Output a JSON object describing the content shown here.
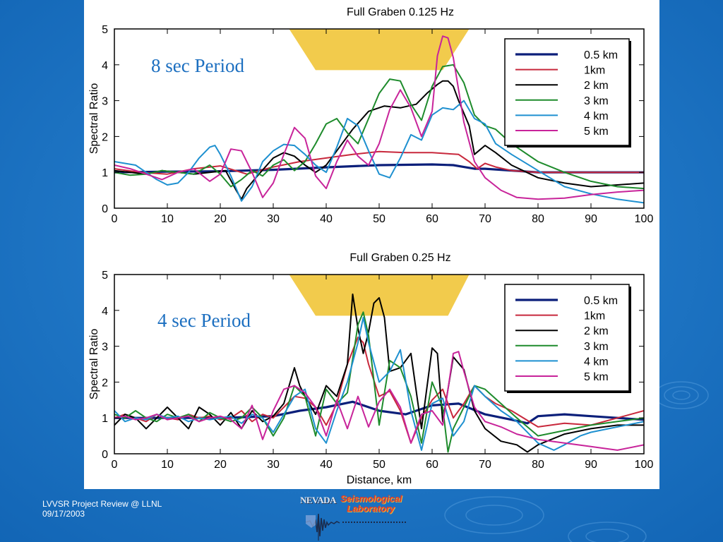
{
  "footer": {
    "line1": "LVVSR Project Review @ LLNL",
    "line2": "09/17/2003"
  },
  "logo": {
    "nevada": "NEVADA",
    "line1": "Seismological",
    "line2": "Laboratory"
  },
  "colors": {
    "background": "#1a73c4",
    "graben": "#f2cb4c",
    "annotation": "#1c6fc0"
  },
  "chart_data": [
    {
      "type": "line",
      "title": "Full Graben 0.125 Hz",
      "xlabel": "",
      "ylabel": "Spectral Ratio",
      "xlim": [
        0,
        100
      ],
      "ylim": [
        0,
        5
      ],
      "xticks": [
        0,
        10,
        20,
        30,
        40,
        50,
        60,
        70,
        80,
        90,
        100
      ],
      "yticks": [
        0,
        1,
        2,
        3,
        4,
        5
      ],
      "annotation": "8 sec Period",
      "legend_position": "top-right",
      "graben": {
        "top": [
          33,
          67
        ],
        "bottom": [
          38,
          62
        ],
        "y_bottom": 3.85,
        "y_top": 5
      },
      "series": [
        {
          "name": "0.5 km",
          "color": "#0b1f7a",
          "width": 3.2,
          "x": [
            0,
            10,
            20,
            30,
            40,
            50,
            60,
            64,
            66,
            68,
            70,
            75,
            80,
            90,
            100
          ],
          "y": [
            1.0,
            1.02,
            1.03,
            1.07,
            1.14,
            1.2,
            1.22,
            1.2,
            1.15,
            1.1,
            1.1,
            1.05,
            1.0,
            1.0,
            1.0
          ]
        },
        {
          "name": "1km",
          "color": "#c8283c",
          "width": 2,
          "x": [
            0,
            5,
            10,
            15,
            20,
            25,
            30,
            35,
            40,
            45,
            50,
            55,
            60,
            65,
            67,
            68.5,
            70,
            72,
            75,
            80,
            85,
            90,
            95,
            100
          ],
          "y": [
            1.1,
            1.0,
            0.95,
            1.1,
            1.18,
            0.95,
            1.15,
            1.3,
            1.4,
            1.5,
            1.58,
            1.55,
            1.55,
            1.5,
            1.3,
            1.1,
            1.25,
            1.15,
            1.05,
            1.0,
            1.0,
            1.0,
            1.0,
            1.0
          ]
        },
        {
          "name": "2 km",
          "color": "#000000",
          "width": 2,
          "x": [
            0,
            3,
            6,
            9,
            12,
            15,
            18,
            21,
            23,
            24,
            25,
            27,
            30,
            32,
            34,
            36,
            38,
            40,
            42,
            45,
            48,
            51,
            54,
            57,
            59,
            61,
            62,
            63,
            64,
            65,
            67,
            68,
            70,
            72,
            75,
            80,
            85,
            90,
            95,
            100
          ],
          "y": [
            1.05,
            1.0,
            0.95,
            1.05,
            1.0,
            0.95,
            1.0,
            1.05,
            0.5,
            0.25,
            0.55,
            0.9,
            1.4,
            1.55,
            1.45,
            1.2,
            1.0,
            1.2,
            1.6,
            2.2,
            2.7,
            2.85,
            2.8,
            2.9,
            3.2,
            3.45,
            3.55,
            3.55,
            3.4,
            3.0,
            2.3,
            1.5,
            1.75,
            1.55,
            1.2,
            0.85,
            0.7,
            0.6,
            0.65,
            0.7
          ]
        },
        {
          "name": "3 km",
          "color": "#1e8b2c",
          "width": 2,
          "x": [
            0,
            3,
            6,
            9,
            12,
            15,
            18,
            20,
            22,
            24,
            26,
            28,
            30,
            32,
            34,
            36,
            38,
            40,
            42,
            44,
            46,
            48,
            50,
            52,
            54,
            56,
            58,
            60,
            62,
            64,
            66,
            68,
            70,
            72,
            75,
            80,
            85,
            90,
            95,
            100
          ],
          "y": [
            1.0,
            0.92,
            0.95,
            1.05,
            1.0,
            0.95,
            1.2,
            0.95,
            0.6,
            0.8,
            1.05,
            0.9,
            1.2,
            1.35,
            1.05,
            1.3,
            1.8,
            2.35,
            2.5,
            2.1,
            1.8,
            2.5,
            3.2,
            3.6,
            3.55,
            2.9,
            2.45,
            3.4,
            3.95,
            4.0,
            3.5,
            2.6,
            2.3,
            2.2,
            1.8,
            1.3,
            1.0,
            0.75,
            0.6,
            0.55
          ]
        },
        {
          "name": "4 km",
          "color": "#1e90d0",
          "width": 2,
          "x": [
            0,
            2,
            4,
            6,
            8,
            10,
            12,
            14,
            16,
            18,
            19,
            20,
            22,
            24,
            26,
            28,
            30,
            32,
            34,
            36,
            38,
            40,
            42,
            44,
            46,
            48,
            50,
            52,
            54,
            56,
            58,
            60,
            62,
            64,
            66,
            68,
            70,
            72,
            75,
            80,
            85,
            90,
            95,
            100
          ],
          "y": [
            1.3,
            1.25,
            1.2,
            1.0,
            0.8,
            0.65,
            0.7,
            1.0,
            1.4,
            1.7,
            1.75,
            1.5,
            0.9,
            0.2,
            0.6,
            1.3,
            1.6,
            1.78,
            1.75,
            1.5,
            1.2,
            1.0,
            1.7,
            2.5,
            2.3,
            1.6,
            0.95,
            0.85,
            1.4,
            2.05,
            1.9,
            2.6,
            2.8,
            2.75,
            3.0,
            2.5,
            2.35,
            1.8,
            1.5,
            1.05,
            0.6,
            0.4,
            0.25,
            0.15
          ]
        },
        {
          "name": "5 km",
          "color": "#c8249a",
          "width": 2,
          "x": [
            0,
            3,
            6,
            9,
            12,
            15,
            18,
            20,
            22,
            24,
            26,
            28,
            30,
            32,
            34,
            36,
            38,
            40,
            42,
            44,
            46,
            48,
            50,
            52,
            54,
            56,
            58,
            60,
            61,
            62,
            63,
            64,
            66,
            68,
            70,
            73,
            76,
            80,
            85,
            90,
            95,
            100
          ],
          "y": [
            1.2,
            1.1,
            0.95,
            0.8,
            1.0,
            1.1,
            0.75,
            0.95,
            1.65,
            1.6,
            1.0,
            0.3,
            0.7,
            1.5,
            2.25,
            1.95,
            0.9,
            0.55,
            1.3,
            1.9,
            1.45,
            1.2,
            1.8,
            2.75,
            3.3,
            2.8,
            2.0,
            2.7,
            4.25,
            4.8,
            4.75,
            4.2,
            2.4,
            1.3,
            0.85,
            0.5,
            0.3,
            0.25,
            0.28,
            0.38,
            0.45,
            0.5
          ]
        }
      ]
    },
    {
      "type": "line",
      "title": "Full Graben 0.25 Hz",
      "xlabel": "Distance, km",
      "ylabel": "Spectral Ratio",
      "xlim": [
        0,
        100
      ],
      "ylim": [
        0,
        5
      ],
      "xticks": [
        0,
        10,
        20,
        30,
        40,
        50,
        60,
        70,
        80,
        90,
        100
      ],
      "yticks": [
        0,
        1,
        2,
        3,
        4,
        5
      ],
      "annotation": "4 sec Period",
      "legend_position": "top-right",
      "graben": {
        "top": [
          33,
          67
        ],
        "bottom": [
          38,
          63
        ],
        "y_bottom": 3.85,
        "y_top": 5
      },
      "series": [
        {
          "name": "0.5 km",
          "color": "#0b1f7a",
          "width": 3.2,
          "x": [
            0,
            10,
            20,
            30,
            35,
            40,
            45,
            50,
            55,
            60,
            65,
            70,
            75,
            78,
            80,
            85,
            90,
            95,
            100
          ],
          "y": [
            1.0,
            1.0,
            1.0,
            1.05,
            1.2,
            1.3,
            1.45,
            1.2,
            1.1,
            1.35,
            1.4,
            1.1,
            0.95,
            0.85,
            1.05,
            1.1,
            1.05,
            1.0,
            0.95
          ]
        },
        {
          "name": "1km",
          "color": "#c8283c",
          "width": 2,
          "x": [
            0,
            2,
            4,
            6,
            8,
            10,
            12,
            14,
            16,
            18,
            20,
            22,
            24,
            26,
            28,
            30,
            32,
            34,
            36,
            38,
            40,
            42,
            44,
            46,
            47,
            48,
            50,
            52,
            54,
            56,
            58,
            60,
            62,
            64,
            66,
            68,
            70,
            72,
            75,
            80,
            85,
            90,
            95,
            100
          ],
          "y": [
            1.0,
            1.1,
            1.0,
            0.9,
            1.1,
            1.0,
            0.95,
            1.1,
            1.0,
            1.05,
            0.95,
            1.0,
            1.2,
            0.9,
            1.1,
            1.0,
            1.3,
            1.6,
            1.55,
            1.3,
            0.8,
            1.4,
            2.5,
            3.25,
            3.1,
            2.5,
            1.6,
            1.75,
            1.2,
            0.3,
            1.0,
            1.5,
            1.8,
            1.0,
            1.4,
            1.9,
            1.6,
            1.4,
            1.2,
            0.75,
            0.85,
            0.8,
            1.0,
            1.2
          ]
        },
        {
          "name": "2 km",
          "color": "#000000",
          "width": 2,
          "x": [
            0,
            2,
            4,
            6,
            8,
            10,
            12,
            14,
            16,
            18,
            20,
            22,
            24,
            26,
            28,
            30,
            32,
            34,
            35,
            36,
            38,
            40,
            42,
            44,
            45,
            46,
            47,
            48,
            49,
            50,
            51,
            52,
            54,
            56,
            58,
            60,
            61,
            62,
            64,
            66,
            68,
            70,
            73,
            76,
            78,
            80,
            85,
            90,
            95,
            100
          ],
          "y": [
            0.8,
            1.1,
            1.0,
            0.7,
            1.0,
            1.3,
            1.0,
            0.7,
            1.3,
            1.1,
            0.8,
            1.15,
            0.7,
            1.2,
            0.9,
            1.05,
            1.4,
            2.4,
            1.9,
            1.6,
            1.1,
            1.9,
            1.6,
            2.5,
            4.45,
            3.5,
            2.8,
            3.4,
            4.2,
            4.35,
            3.8,
            2.3,
            2.4,
            2.8,
            0.7,
            2.95,
            2.8,
            0.9,
            2.7,
            2.35,
            1.2,
            0.7,
            0.35,
            0.25,
            0.05,
            0.25,
            0.55,
            0.7,
            0.8,
            0.8
          ]
        },
        {
          "name": "3 km",
          "color": "#1e8b2c",
          "width": 2,
          "x": [
            0,
            2,
            4,
            6,
            8,
            10,
            12,
            14,
            16,
            18,
            20,
            22,
            24,
            26,
            28,
            30,
            32,
            34,
            36,
            38,
            40,
            42,
            44,
            46,
            47,
            48,
            50,
            52,
            54,
            56,
            58,
            60,
            62,
            63,
            64,
            66,
            68,
            70,
            73,
            76,
            80,
            85,
            90,
            95,
            100
          ],
          "y": [
            1.1,
            1.0,
            1.2,
            1.0,
            0.9,
            1.1,
            1.0,
            1.1,
            0.9,
            1.15,
            1.0,
            0.9,
            1.0,
            1.3,
            1.0,
            0.5,
            1.0,
            1.9,
            1.6,
            0.5,
            1.8,
            1.4,
            1.7,
            3.6,
            3.95,
            3.3,
            0.8,
            2.6,
            2.4,
            1.6,
            0.3,
            2.0,
            1.3,
            0.05,
            0.7,
            1.3,
            1.9,
            1.8,
            1.4,
            1.0,
            0.5,
            0.65,
            0.8,
            0.9,
            1.0
          ]
        },
        {
          "name": "4 km",
          "color": "#1e90d0",
          "width": 2,
          "x": [
            0,
            2,
            4,
            6,
            8,
            10,
            12,
            14,
            16,
            18,
            20,
            22,
            24,
            26,
            28,
            30,
            32,
            34,
            36,
            38,
            40,
            42,
            44,
            46,
            47,
            48,
            50,
            52,
            54,
            56,
            58,
            60,
            62,
            64,
            66,
            68,
            70,
            73,
            76,
            80,
            83,
            85,
            88,
            90,
            95,
            100
          ],
          "y": [
            1.2,
            0.9,
            1.0,
            0.95,
            1.1,
            1.0,
            1.05,
            0.9,
            1.0,
            0.95,
            1.0,
            1.05,
            0.85,
            1.1,
            1.0,
            0.6,
            1.1,
            1.6,
            1.8,
            0.7,
            0.3,
            1.2,
            2.0,
            3.1,
            3.8,
            3.1,
            2.0,
            2.3,
            2.9,
            1.2,
            0.1,
            1.4,
            1.55,
            0.5,
            0.9,
            1.9,
            1.6,
            1.2,
            0.9,
            0.3,
            0.1,
            0.25,
            0.5,
            0.6,
            0.75,
            0.9
          ]
        },
        {
          "name": "5 km",
          "color": "#c8249a",
          "width": 2,
          "x": [
            0,
            2,
            4,
            6,
            8,
            10,
            12,
            14,
            16,
            18,
            20,
            22,
            24,
            26,
            28,
            30,
            32,
            34,
            36,
            38,
            40,
            42,
            44,
            46,
            48,
            50,
            52,
            54,
            56,
            58,
            60,
            62,
            64,
            65,
            66,
            68,
            70,
            73,
            76,
            80,
            85,
            90,
            95,
            100
          ],
          "y": [
            1.0,
            1.05,
            0.95,
            1.0,
            1.1,
            0.95,
            1.0,
            1.05,
            0.9,
            1.0,
            1.05,
            0.95,
            0.7,
            1.35,
            0.4,
            1.2,
            1.8,
            1.9,
            1.7,
            1.3,
            0.5,
            1.5,
            0.7,
            1.6,
            0.75,
            1.45,
            1.8,
            1.3,
            0.3,
            1.1,
            1.2,
            0.8,
            2.8,
            2.85,
            2.3,
            1.3,
            0.9,
            0.75,
            0.55,
            0.4,
            0.3,
            0.2,
            0.1,
            0.25
          ]
        }
      ]
    }
  ]
}
